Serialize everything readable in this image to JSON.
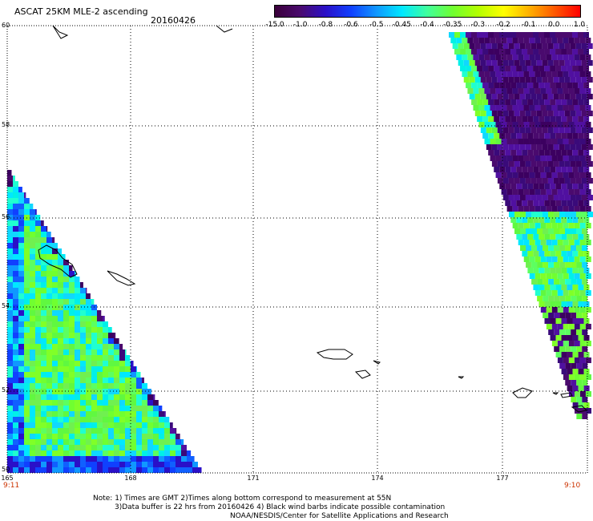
{
  "header": {
    "title": "ASCAT 25KM MLE-2 ascending",
    "date": "20160426"
  },
  "colorbar": {
    "labels": [
      "-15.0",
      "-1.0",
      "-0.8",
      "-0.6",
      "-0.5",
      "-0.45",
      "-0.4",
      "-0.35",
      "-0.3",
      "-0.2",
      "-0.1",
      "0.0",
      "1.0"
    ],
    "colors": [
      "#3a003a",
      "#4a0a6e",
      "#2a10c8",
      "#1040ff",
      "#1098ff",
      "#00e8ff",
      "#40ff9c",
      "#70ff30",
      "#b4ff00",
      "#ffff00",
      "#ffb000",
      "#ff5800",
      "#ff0000"
    ]
  },
  "map": {
    "lat_labels": [
      "60",
      "58",
      "56",
      "54",
      "52",
      "50"
    ],
    "lon_labels": [
      "165",
      "168",
      "171",
      "174",
      "177"
    ],
    "time_left": "9:11",
    "time_right": "9:10"
  },
  "notes": {
    "line1": "Note: 1) Times are GMT 2)Times along bottom correspond to measurement at 55N",
    "line2": "3)Data buffer is 22 hrs from 20160426 4) Black wind barbs indicate possible contamination",
    "line3": "NOAA/NESDIS/Center for Satellite Applications and Research"
  }
}
